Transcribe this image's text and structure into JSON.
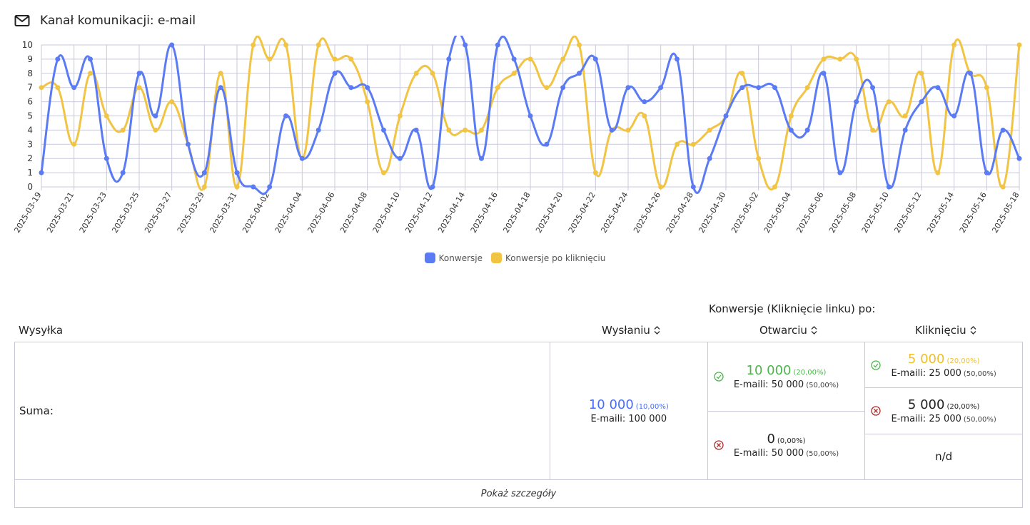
{
  "header": {
    "title": "Kanał komunikacji: e-mail",
    "icon": "mail-icon"
  },
  "colors": {
    "conv": "#5b7bf5",
    "click": "#f2c444",
    "grid": "#c9c9dc",
    "ok": "#4cb64c",
    "fail": "#b02a2a"
  },
  "chart_data": {
    "type": "line",
    "smooth": true,
    "ylim": [
      0,
      10
    ],
    "yticks": [
      0,
      1,
      2,
      3,
      4,
      5,
      6,
      7,
      8,
      9,
      10
    ],
    "grid": true,
    "legend_position": "bottom",
    "x": [
      "2025-03-19",
      "2025-03-20",
      "2025-03-21",
      "2025-03-22",
      "2025-03-23",
      "2025-03-24",
      "2025-03-25",
      "2025-03-26",
      "2025-03-27",
      "2025-03-28",
      "2025-03-29",
      "2025-03-30",
      "2025-03-31",
      "2025-04-01",
      "2025-04-02",
      "2025-04-03",
      "2025-04-04",
      "2025-04-05",
      "2025-04-06",
      "2025-04-07",
      "2025-04-08",
      "2025-04-09",
      "2025-04-10",
      "2025-04-11",
      "2025-04-12",
      "2025-04-13",
      "2025-04-14",
      "2025-04-15",
      "2025-04-16",
      "2025-04-17",
      "2025-04-18",
      "2025-04-19",
      "2025-04-20",
      "2025-04-21",
      "2025-04-22",
      "2025-04-23",
      "2025-04-24",
      "2025-04-25",
      "2025-04-26",
      "2025-04-27",
      "2025-04-28",
      "2025-04-29",
      "2025-04-30",
      "2025-05-01",
      "2025-05-02",
      "2025-05-03",
      "2025-05-04",
      "2025-05-05",
      "2025-05-06",
      "2025-05-07",
      "2025-05-08",
      "2025-05-09",
      "2025-05-10",
      "2025-05-11",
      "2025-05-12",
      "2025-05-13",
      "2025-05-14",
      "2025-05-15",
      "2025-05-16",
      "2025-05-17",
      "2025-05-18"
    ],
    "xticks": [
      "2025-03-19",
      "2025-03-21",
      "2025-03-23",
      "2025-03-25",
      "2025-03-27",
      "2025-03-29",
      "2025-03-31",
      "2025-04-02",
      "2025-04-04",
      "2025-04-06",
      "2025-04-08",
      "2025-04-10",
      "2025-04-12",
      "2025-04-14",
      "2025-04-16",
      "2025-04-18",
      "2025-04-20",
      "2025-04-22",
      "2025-04-24",
      "2025-04-26",
      "2025-04-28",
      "2025-04-30",
      "2025-05-02",
      "2025-05-04",
      "2025-05-06",
      "2025-05-08",
      "2025-05-10",
      "2025-05-12",
      "2025-05-14",
      "2025-05-16",
      "2025-05-18"
    ],
    "series": [
      {
        "name": "Konwersje",
        "color": "#5b7bf5",
        "values": [
          1,
          9,
          7,
          9,
          2,
          1,
          8,
          5,
          10,
          3,
          1,
          7,
          1,
          0,
          0,
          5,
          2,
          4,
          8,
          7,
          7,
          4,
          2,
          4,
          0,
          9,
          10,
          2,
          10,
          9,
          5,
          3,
          7,
          8,
          9,
          4,
          7,
          6,
          7,
          9,
          0,
          2,
          5,
          7,
          7,
          7,
          4,
          4,
          8,
          1,
          6,
          7,
          0,
          4,
          6,
          7,
          5,
          8,
          1,
          4,
          2
        ]
      },
      {
        "name": "Konwersje po kliknięciu",
        "color": "#f2c444",
        "values": [
          7,
          7,
          3,
          8,
          5,
          4,
          7,
          4,
          6,
          3,
          0,
          8,
          0,
          10,
          9,
          10,
          2,
          10,
          9,
          9,
          6,
          1,
          5,
          8,
          8,
          4,
          4,
          4,
          7,
          8,
          9,
          7,
          9,
          10,
          1,
          4,
          4,
          5,
          0,
          3,
          3,
          4,
          5,
          8,
          2,
          0,
          5,
          7,
          9,
          9,
          9,
          4,
          6,
          5,
          8,
          1,
          10,
          8,
          7,
          0,
          10
        ]
      }
    ]
  },
  "table": {
    "group_header": "Konwersje (Kliknięcie linku) po:",
    "columns": [
      "Wysyłka",
      "Wysłaniu",
      "Otwarciu",
      "Kliknięciu"
    ],
    "row_label": "Suma:",
    "sent": {
      "value": "10 000",
      "pct": "(10,00%)",
      "emails_label": "E-maili: 100 000"
    },
    "open_yes": {
      "value": "10 000",
      "pct": "(20,00%)",
      "emails_label": "E-maili: 50 000",
      "emails_pct": "(50,00%)"
    },
    "open_no": {
      "value": "0",
      "pct": "(0,00%)",
      "emails_label": "E-maili: 50 000",
      "emails_pct": "(50,00%)"
    },
    "click_yes": {
      "value": "5 000",
      "pct": "(20,00%)",
      "emails_label": "E-maili: 25 000",
      "emails_pct": "(50,00%)"
    },
    "click_no": {
      "value": "5 000",
      "pct": "(20,00%)",
      "emails_label": "E-maili: 25 000",
      "emails_pct": "(50,00%)"
    },
    "click_nd": "n/d",
    "details_link": "Pokaż szczegóły"
  }
}
